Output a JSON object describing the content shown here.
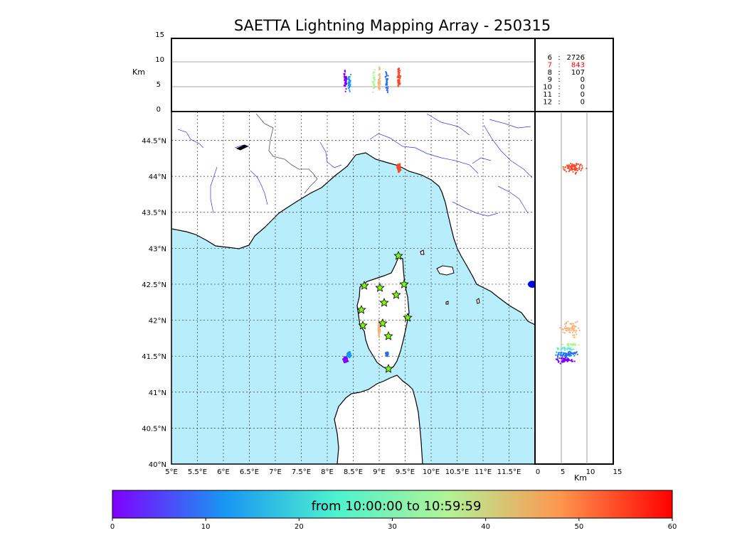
{
  "title": "SAETTA Lightning Mapping Array - 250315",
  "alt_axis": {
    "unit_label": "Km",
    "ticks": [
      "0",
      "5",
      "10",
      "15"
    ]
  },
  "lat_ticks": [
    "40°N",
    "40.5°N",
    "41°N",
    "41.5°N",
    "42°N",
    "42.5°N",
    "43°N",
    "43.5°N",
    "44°N",
    "44.5°N"
  ],
  "lon_ticks": [
    "5°E",
    "5.5°E",
    "6°E",
    "6.5°E",
    "7°E",
    "7.5°E",
    "8°E",
    "8.5°E",
    "9°E",
    "9.5°E",
    "10°E",
    "10.5°E",
    "11°E",
    "11.5°E"
  ],
  "counts": [
    {
      "stations": "6",
      "sep": ":",
      "value": "2726",
      "color": "#000000"
    },
    {
      "stations": "7",
      "sep": ":",
      "value": "843",
      "color": "#ff0000"
    },
    {
      "stations": "8",
      "sep": ":",
      "value": "107",
      "color": "#000000"
    },
    {
      "stations": "9",
      "sep": ":",
      "value": "0",
      "color": "#000000"
    },
    {
      "stations": "10",
      "sep": ":",
      "value": "0",
      "color": "#000000"
    },
    {
      "stations": "11",
      "sep": ":",
      "value": "0",
      "color": "#000000"
    },
    {
      "stations": "12",
      "sep": ":",
      "value": "0",
      "color": "#000000"
    }
  ],
  "colorbar": {
    "label": "from 10:00:00 to 10:59:59",
    "ticks": [
      "0",
      "10",
      "20",
      "30",
      "40",
      "50",
      "60"
    ],
    "colors": [
      "#7f00ff",
      "#1996f3",
      "#4df2ce",
      "#b2f396",
      "#ff964f",
      "#ff0000"
    ]
  },
  "colors": {
    "sea": "#b8eefc",
    "land": "#ffffff",
    "rivers": "#3333ee",
    "star_fill": "#7ef80a",
    "station_marker": "#0000ff"
  }
}
